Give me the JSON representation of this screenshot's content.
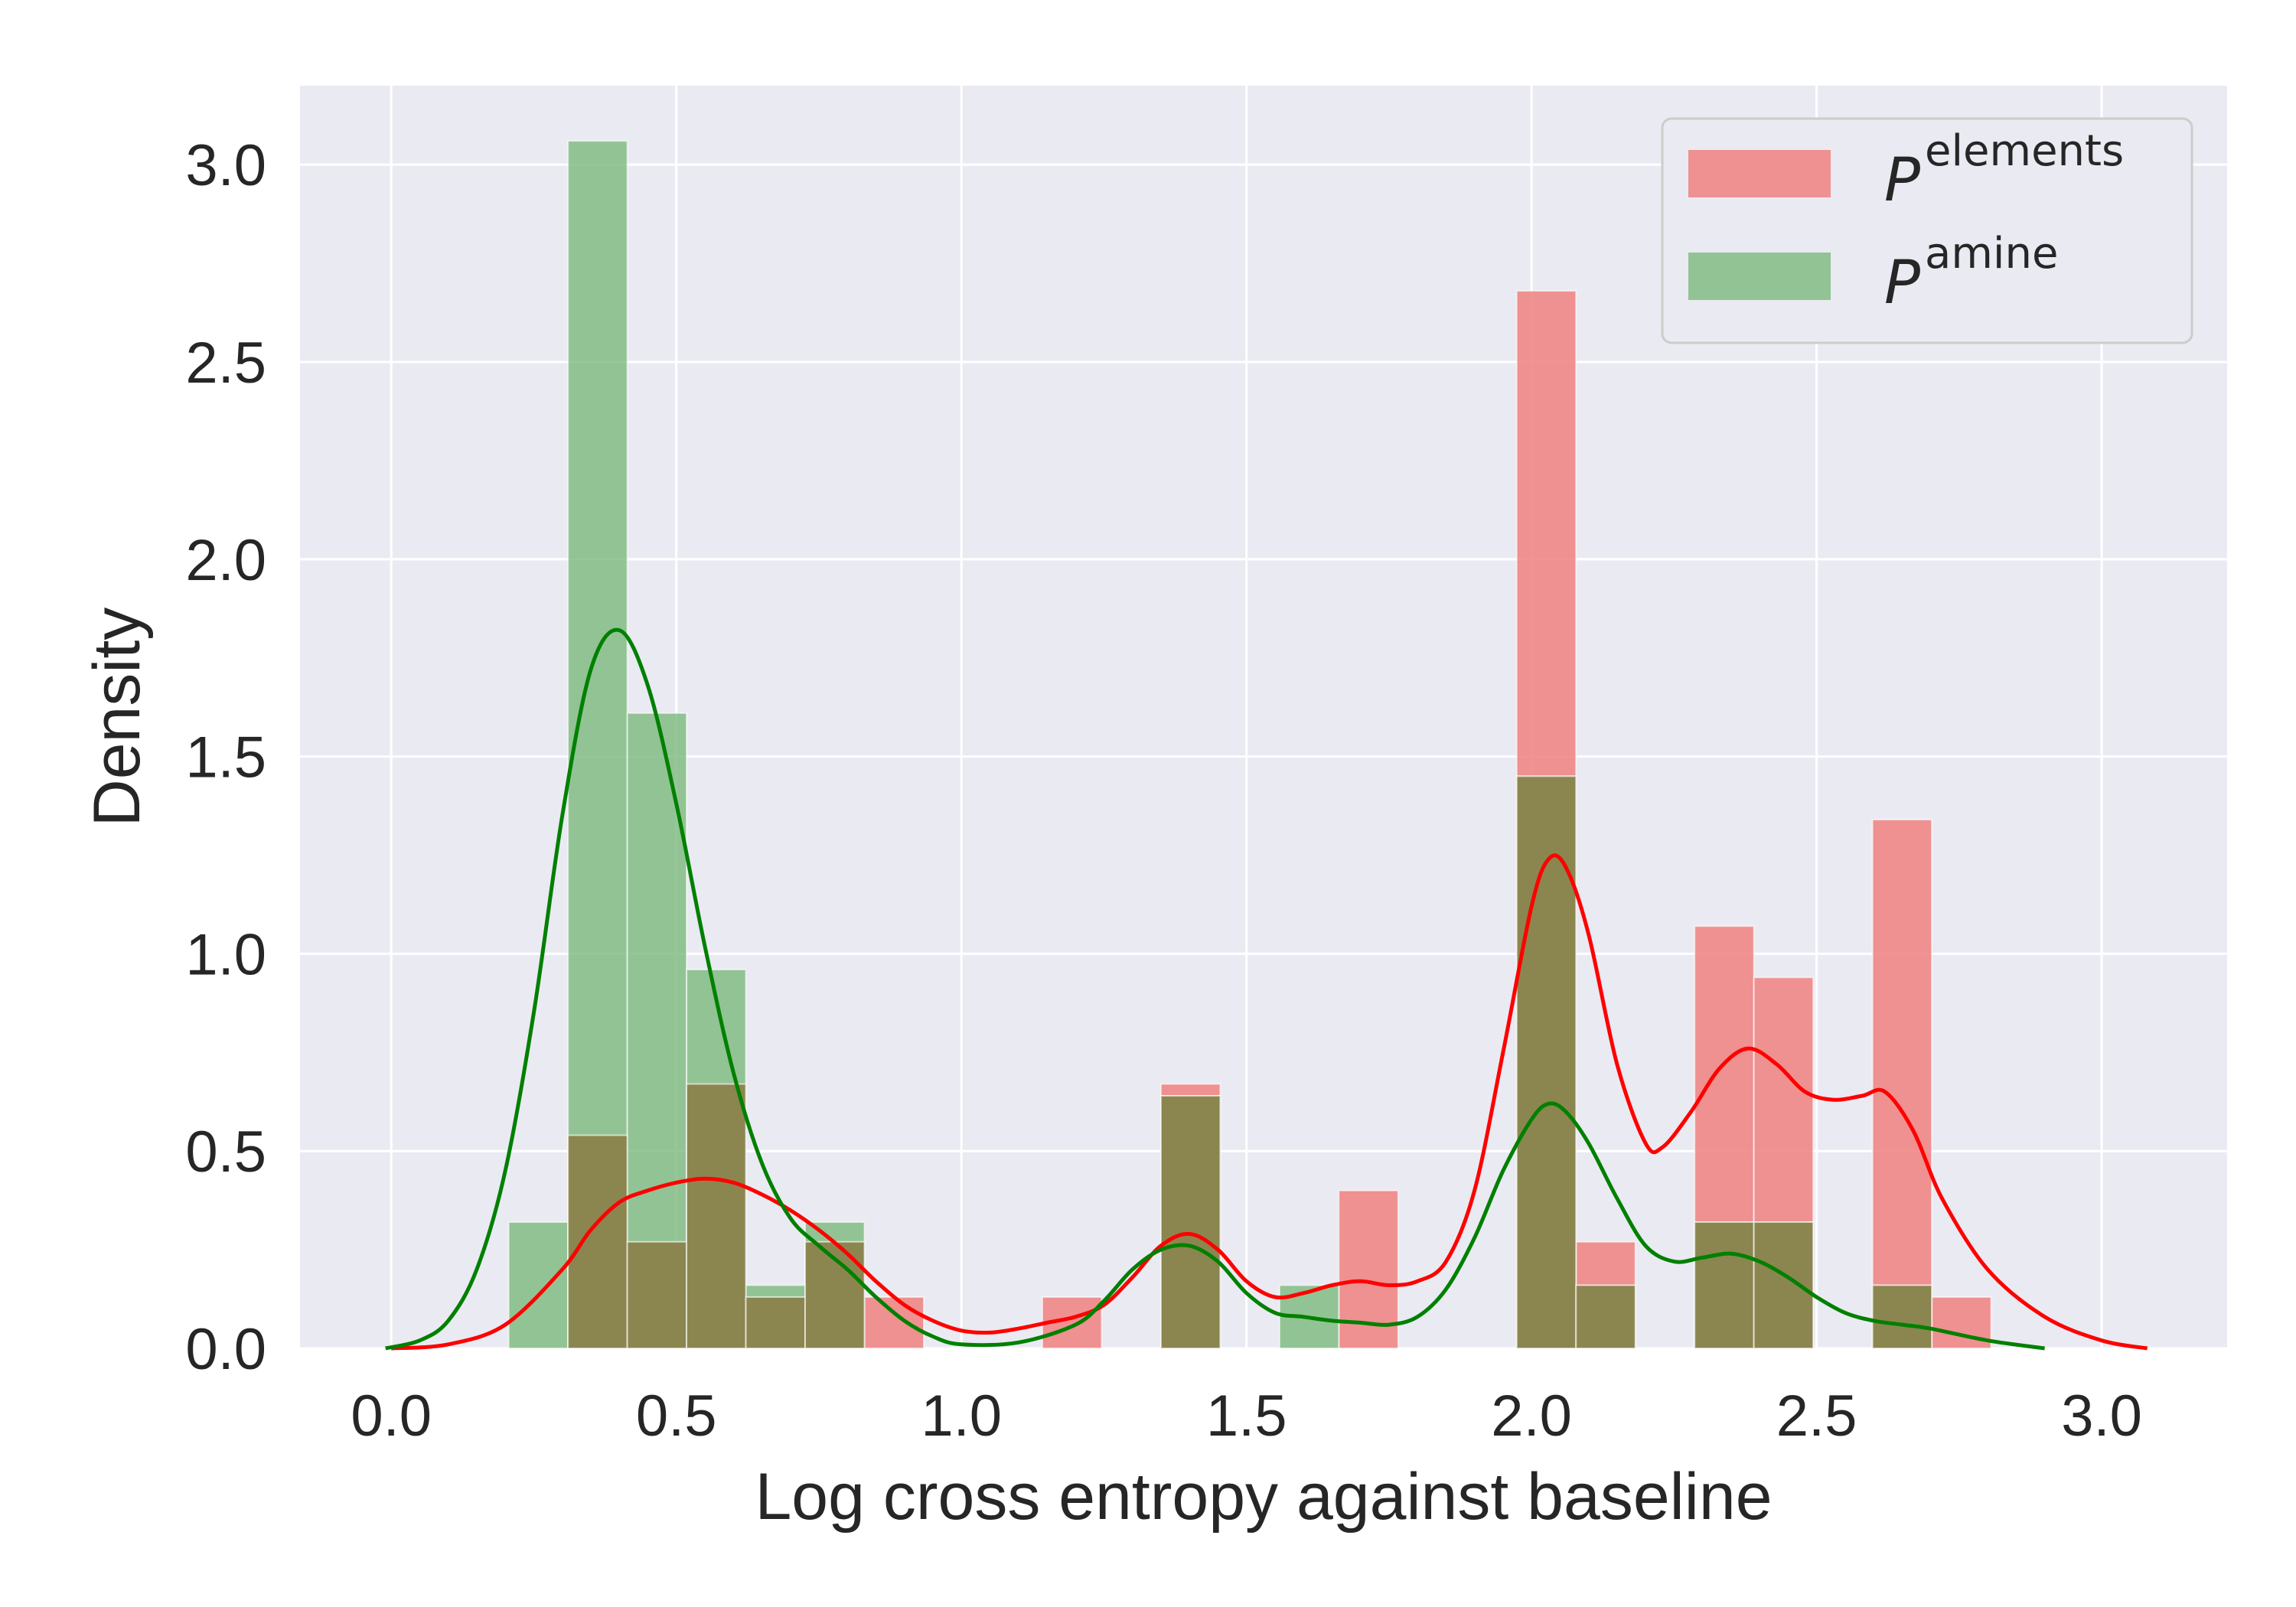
{
  "chart_data": {
    "type": "histogram",
    "xlabel": "Log cross entropy against baseline",
    "ylabel": "Density",
    "xlim": [
      -0.16,
      3.22
    ],
    "ylim": [
      0,
      3.2
    ],
    "xticks": [
      "0.0",
      "0.5",
      "1.0",
      "1.5",
      "2.0",
      "2.5",
      "3.0"
    ],
    "yticks": [
      "0.0",
      "0.5",
      "1.0",
      "1.5",
      "2.0",
      "2.5",
      "3.0"
    ],
    "grid": true,
    "legend_position": "upper-right",
    "series": [
      {
        "name_base": "P",
        "name_sup": "elements",
        "color": "#f08080",
        "kde_color": "#ff0000",
        "bins": [
          {
            "x0": 0.31,
            "x1": 0.414,
            "value": 0.54
          },
          {
            "x0": 0.414,
            "x1": 0.518,
            "value": 0.27
          },
          {
            "x0": 0.518,
            "x1": 0.622,
            "value": 0.67
          },
          {
            "x0": 0.622,
            "x1": 0.726,
            "value": 0.13
          },
          {
            "x0": 0.726,
            "x1": 0.83,
            "value": 0.27
          },
          {
            "x0": 0.83,
            "x1": 0.934,
            "value": 0.13
          },
          {
            "x0": 1.142,
            "x1": 1.246,
            "value": 0.13
          },
          {
            "x0": 1.35,
            "x1": 1.454,
            "value": 0.67
          },
          {
            "x0": 1.662,
            "x1": 1.766,
            "value": 0.4
          },
          {
            "x0": 1.974,
            "x1": 2.078,
            "value": 2.68
          },
          {
            "x0": 2.078,
            "x1": 2.182,
            "value": 0.27
          },
          {
            "x0": 2.286,
            "x1": 2.39,
            "value": 1.07
          },
          {
            "x0": 2.39,
            "x1": 2.494,
            "value": 0.94
          },
          {
            "x0": 2.598,
            "x1": 2.702,
            "value": 1.34
          },
          {
            "x0": 2.702,
            "x1": 2.806,
            "value": 0.13
          }
        ],
        "kde": [
          [
            0.0,
            0.0
          ],
          [
            0.1,
            0.01
          ],
          [
            0.2,
            0.06
          ],
          [
            0.3,
            0.2
          ],
          [
            0.35,
            0.3
          ],
          [
            0.4,
            0.37
          ],
          [
            0.45,
            0.4
          ],
          [
            0.5,
            0.42
          ],
          [
            0.55,
            0.43
          ],
          [
            0.6,
            0.42
          ],
          [
            0.65,
            0.39
          ],
          [
            0.7,
            0.35
          ],
          [
            0.75,
            0.3
          ],
          [
            0.8,
            0.24
          ],
          [
            0.85,
            0.17
          ],
          [
            0.9,
            0.11
          ],
          [
            0.95,
            0.07
          ],
          [
            1.0,
            0.045
          ],
          [
            1.05,
            0.04
          ],
          [
            1.1,
            0.05
          ],
          [
            1.15,
            0.065
          ],
          [
            1.2,
            0.08
          ],
          [
            1.25,
            0.11
          ],
          [
            1.3,
            0.18
          ],
          [
            1.35,
            0.26
          ],
          [
            1.4,
            0.29
          ],
          [
            1.45,
            0.25
          ],
          [
            1.5,
            0.17
          ],
          [
            1.55,
            0.13
          ],
          [
            1.6,
            0.14
          ],
          [
            1.65,
            0.16
          ],
          [
            1.7,
            0.17
          ],
          [
            1.75,
            0.16
          ],
          [
            1.8,
            0.17
          ],
          [
            1.85,
            0.22
          ],
          [
            1.9,
            0.4
          ],
          [
            1.95,
            0.75
          ],
          [
            2.0,
            1.12
          ],
          [
            2.03,
            1.24
          ],
          [
            2.06,
            1.22
          ],
          [
            2.1,
            1.05
          ],
          [
            2.15,
            0.72
          ],
          [
            2.2,
            0.52
          ],
          [
            2.23,
            0.51
          ],
          [
            2.28,
            0.6
          ],
          [
            2.33,
            0.71
          ],
          [
            2.38,
            0.76
          ],
          [
            2.43,
            0.72
          ],
          [
            2.48,
            0.65
          ],
          [
            2.53,
            0.63
          ],
          [
            2.58,
            0.64
          ],
          [
            2.62,
            0.65
          ],
          [
            2.67,
            0.55
          ],
          [
            2.72,
            0.38
          ],
          [
            2.8,
            0.2
          ],
          [
            2.9,
            0.08
          ],
          [
            3.0,
            0.02
          ],
          [
            3.08,
            0.0
          ]
        ]
      },
      {
        "name_base": "P",
        "name_sup": "amine",
        "color": "#7cb97c",
        "kde_color": "#008000",
        "bins": [
          {
            "x0": 0.206,
            "x1": 0.31,
            "value": 0.32
          },
          {
            "x0": 0.31,
            "x1": 0.414,
            "value": 3.06
          },
          {
            "x0": 0.414,
            "x1": 0.518,
            "value": 1.61
          },
          {
            "x0": 0.518,
            "x1": 0.622,
            "value": 0.96
          },
          {
            "x0": 0.622,
            "x1": 0.726,
            "value": 0.16
          },
          {
            "x0": 0.726,
            "x1": 0.83,
            "value": 0.32
          },
          {
            "x0": 1.35,
            "x1": 1.454,
            "value": 0.64
          },
          {
            "x0": 1.558,
            "x1": 1.662,
            "value": 0.16
          },
          {
            "x0": 1.974,
            "x1": 2.078,
            "value": 1.45
          },
          {
            "x0": 2.078,
            "x1": 2.182,
            "value": 0.16
          },
          {
            "x0": 2.286,
            "x1": 2.39,
            "value": 0.32
          },
          {
            "x0": 2.39,
            "x1": 2.494,
            "value": 0.32
          },
          {
            "x0": 2.598,
            "x1": 2.702,
            "value": 0.16
          }
        ],
        "kde": [
          [
            -0.01,
            0.0
          ],
          [
            0.05,
            0.02
          ],
          [
            0.1,
            0.07
          ],
          [
            0.15,
            0.2
          ],
          [
            0.2,
            0.45
          ],
          [
            0.25,
            0.85
          ],
          [
            0.3,
            1.35
          ],
          [
            0.35,
            1.72
          ],
          [
            0.4,
            1.82
          ],
          [
            0.45,
            1.68
          ],
          [
            0.5,
            1.38
          ],
          [
            0.55,
            1.02
          ],
          [
            0.6,
            0.7
          ],
          [
            0.65,
            0.47
          ],
          [
            0.7,
            0.33
          ],
          [
            0.75,
            0.26
          ],
          [
            0.8,
            0.2
          ],
          [
            0.85,
            0.13
          ],
          [
            0.9,
            0.07
          ],
          [
            0.95,
            0.03
          ],
          [
            1.0,
            0.01
          ],
          [
            1.1,
            0.015
          ],
          [
            1.2,
            0.06
          ],
          [
            1.25,
            0.12
          ],
          [
            1.3,
            0.2
          ],
          [
            1.35,
            0.25
          ],
          [
            1.4,
            0.26
          ],
          [
            1.45,
            0.22
          ],
          [
            1.5,
            0.14
          ],
          [
            1.55,
            0.09
          ],
          [
            1.6,
            0.08
          ],
          [
            1.65,
            0.07
          ],
          [
            1.7,
            0.065
          ],
          [
            1.75,
            0.06
          ],
          [
            1.8,
            0.08
          ],
          [
            1.85,
            0.15
          ],
          [
            1.9,
            0.28
          ],
          [
            1.95,
            0.45
          ],
          [
            2.0,
            0.58
          ],
          [
            2.03,
            0.62
          ],
          [
            2.06,
            0.6
          ],
          [
            2.1,
            0.52
          ],
          [
            2.15,
            0.38
          ],
          [
            2.2,
            0.26
          ],
          [
            2.25,
            0.22
          ],
          [
            2.3,
            0.23
          ],
          [
            2.35,
            0.24
          ],
          [
            2.4,
            0.22
          ],
          [
            2.45,
            0.18
          ],
          [
            2.5,
            0.13
          ],
          [
            2.55,
            0.09
          ],
          [
            2.6,
            0.07
          ],
          [
            2.65,
            0.06
          ],
          [
            2.7,
            0.05
          ],
          [
            2.8,
            0.02
          ],
          [
            2.9,
            0.0
          ]
        ]
      }
    ]
  }
}
